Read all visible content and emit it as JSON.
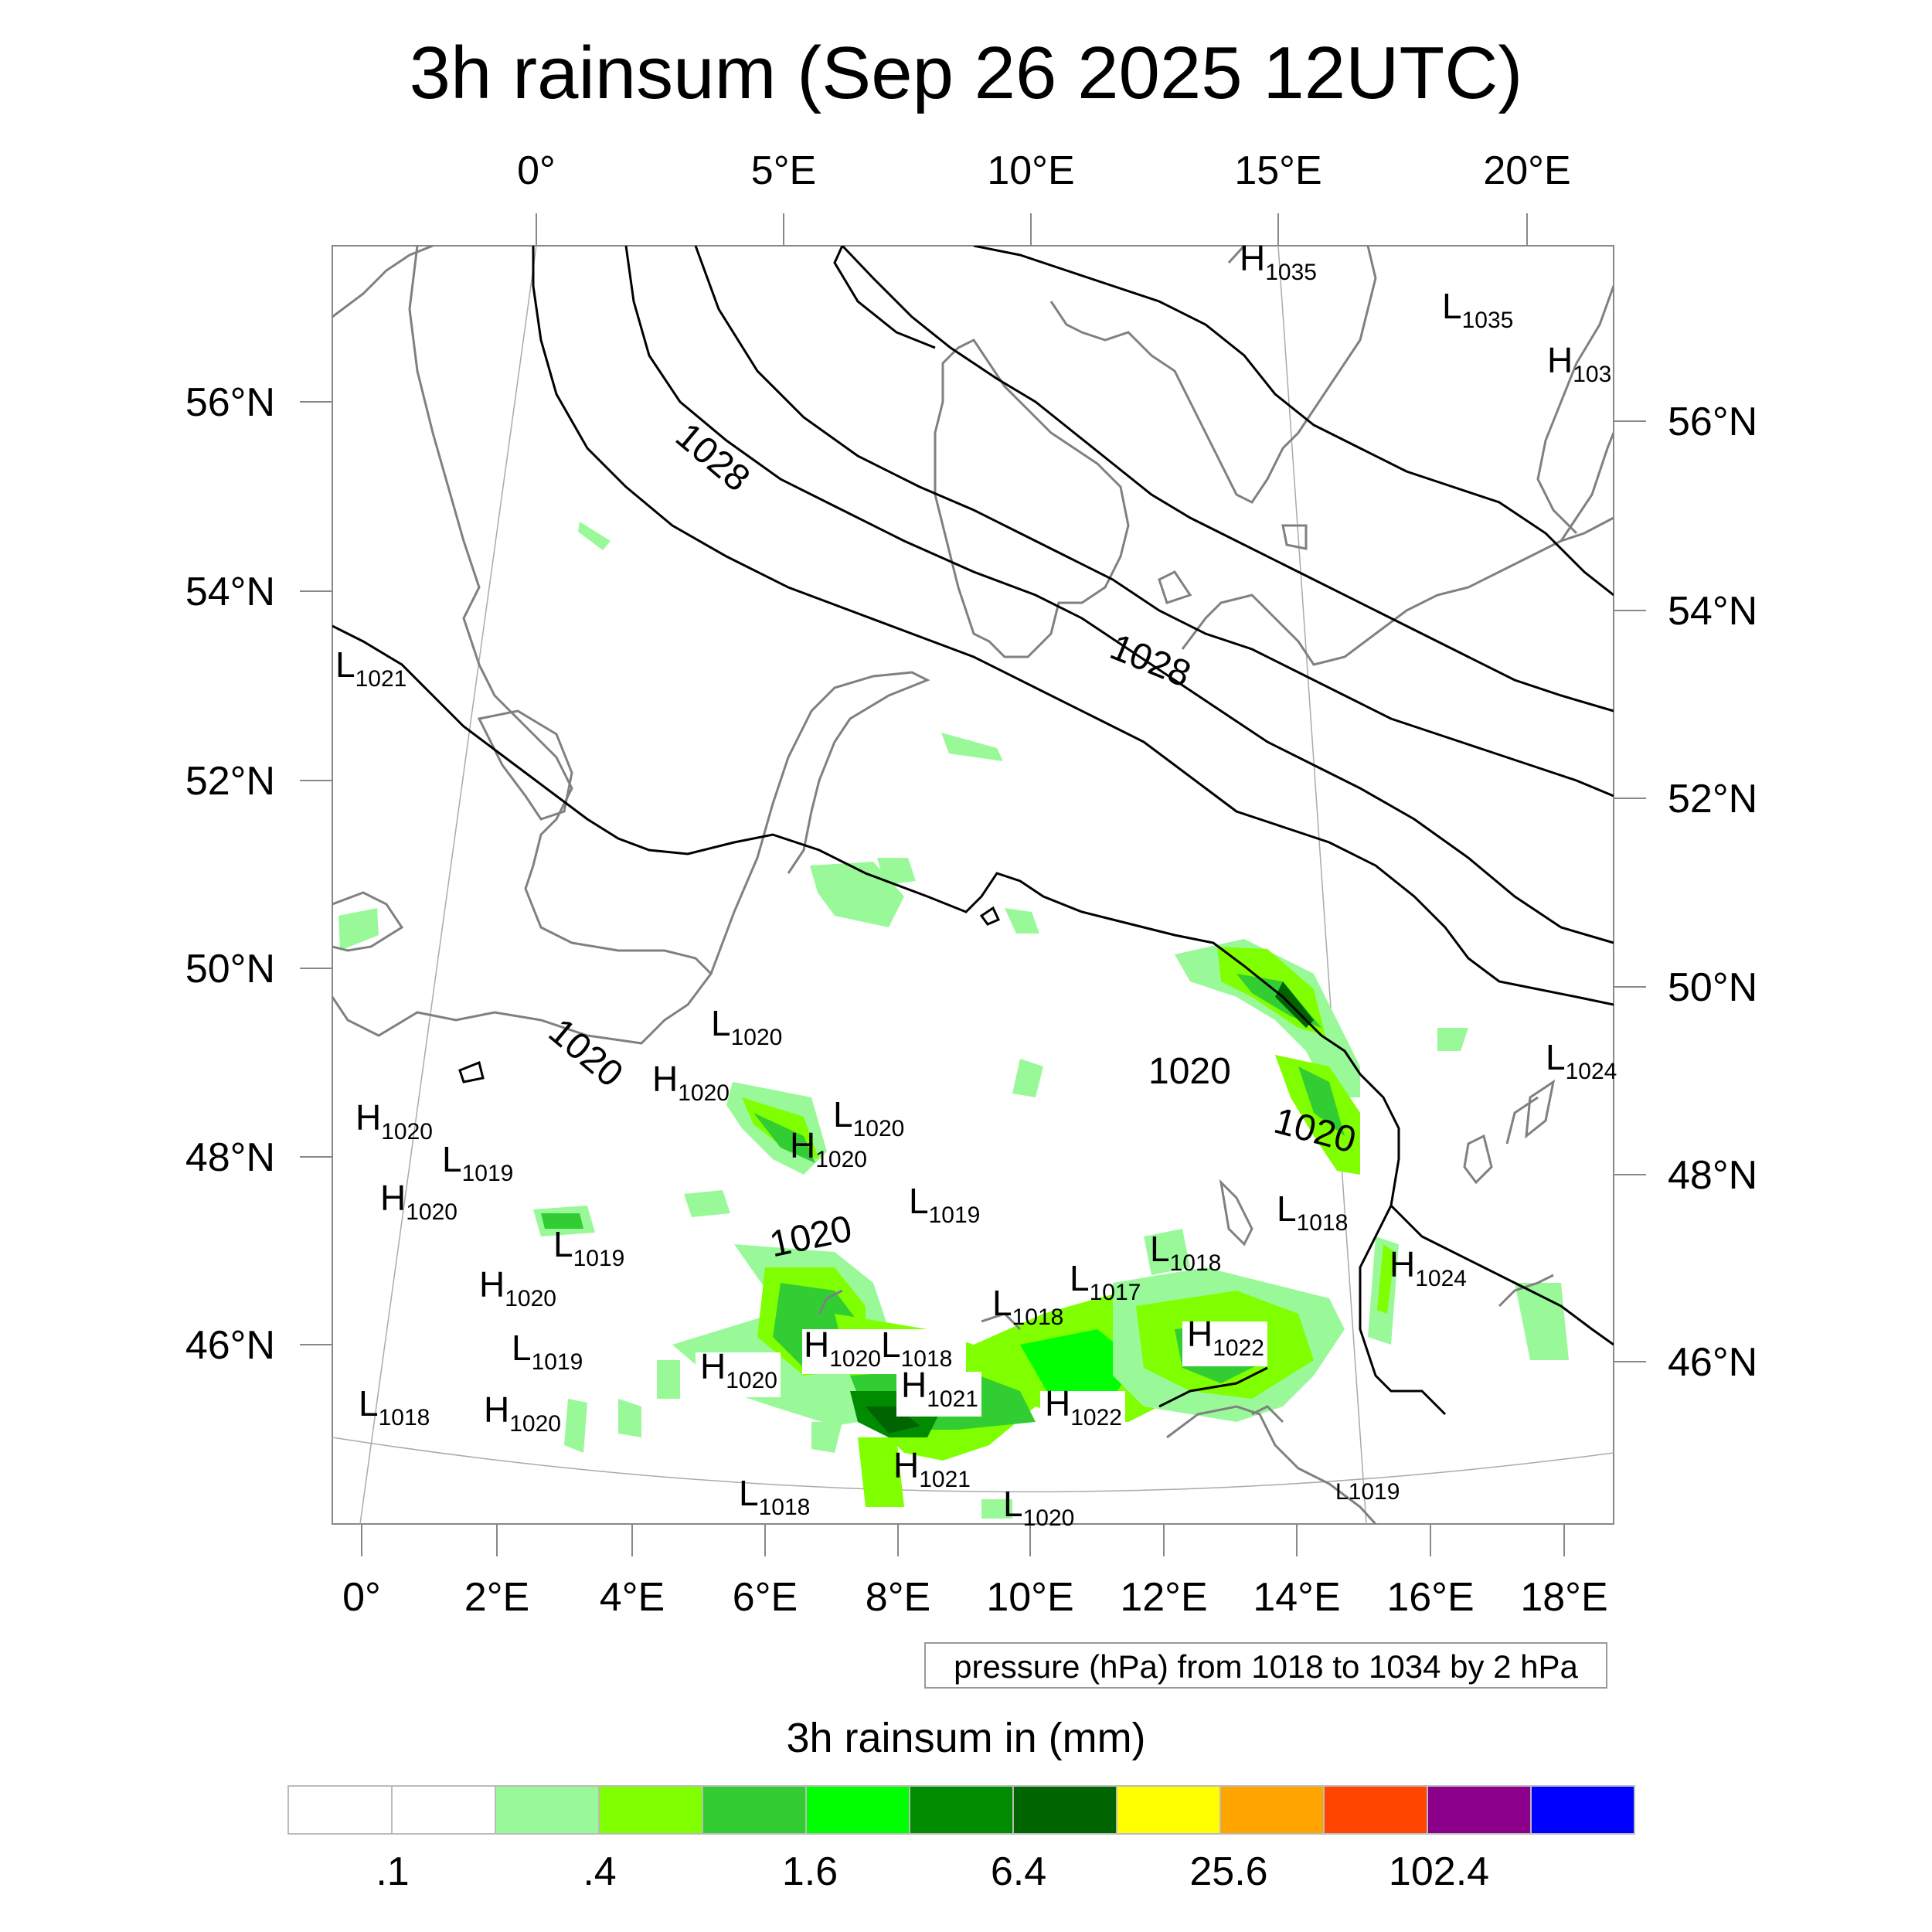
{
  "title": "3h rainsum (Sep 26 2025 12UTC)",
  "top_lon_ticks": [
    "0°",
    "5°E",
    "10°E",
    "15°E",
    "20°E"
  ],
  "bottom_lon_ticks": [
    "0°",
    "2°E",
    "4°E",
    "6°E",
    "8°E",
    "10°E",
    "12°E",
    "14°E",
    "16°E",
    "18°E"
  ],
  "left_lat_ticks": [
    "56°N",
    "54°N",
    "52°N",
    "50°N",
    "48°N",
    "46°N"
  ],
  "right_lat_ticks": [
    "56°N",
    "54°N",
    "52°N",
    "50°N",
    "48°N",
    "46°N"
  ],
  "isobar_labels": [
    "1028",
    "1028",
    "1020",
    "1020",
    "1020",
    "1020"
  ],
  "pressure_centers": [
    {
      "type": "H",
      "value": "1035"
    },
    {
      "type": "L",
      "value": "1035"
    },
    {
      "type": "H",
      "value": "103"
    },
    {
      "type": "L",
      "value": "1021"
    },
    {
      "type": "L",
      "value": "1020"
    },
    {
      "type": "H",
      "value": "1020"
    },
    {
      "type": "L",
      "value": "1020"
    },
    {
      "type": "H",
      "value": "1020"
    },
    {
      "type": "H",
      "value": "1020"
    },
    {
      "type": "L",
      "value": "1019"
    },
    {
      "type": "H",
      "value": "1020"
    },
    {
      "type": "L",
      "value": "1019"
    },
    {
      "type": "L",
      "value": "1019"
    },
    {
      "type": "H",
      "value": "1020"
    },
    {
      "type": "L",
      "value": "1019"
    },
    {
      "type": "L",
      "value": "1018"
    },
    {
      "type": "H",
      "value": "1020"
    },
    {
      "type": "H",
      "value": "1020"
    },
    {
      "type": "H",
      "value": "1020"
    },
    {
      "type": "L",
      "value": "1018"
    },
    {
      "type": "H",
      "value": "1021"
    },
    {
      "type": "H",
      "value": "1021"
    },
    {
      "type": "L",
      "value": "1018"
    },
    {
      "type": "L",
      "value": "1020"
    },
    {
      "type": "L",
      "value": "1018"
    },
    {
      "type": "H",
      "value": "1022"
    },
    {
      "type": "L",
      "value": "1017"
    },
    {
      "type": "L",
      "value": "1018"
    },
    {
      "type": "H",
      "value": "1022"
    },
    {
      "type": "L",
      "value": "1018"
    },
    {
      "type": "H",
      "value": "1024"
    },
    {
      "type": "L",
      "value": "1024"
    },
    {
      "type": "L",
      "value": "1019"
    }
  ],
  "pressure_note": "pressure (hPa) from 1018 to 1034 by 2 hPa",
  "legend": {
    "title": "3h rainsum in (mm)",
    "colors": [
      "#ffffff",
      "#ffffff",
      "#99f999",
      "#80ff00",
      "#32cd32",
      "#00ff00",
      "#008b00",
      "#006400",
      "#ffff00",
      "#ffa500",
      "#ff4500",
      "#8b008b",
      "#0000ff"
    ],
    "labels": [
      ".1",
      ".4",
      "1.6",
      "6.4",
      "25.6",
      "102.4"
    ]
  }
}
